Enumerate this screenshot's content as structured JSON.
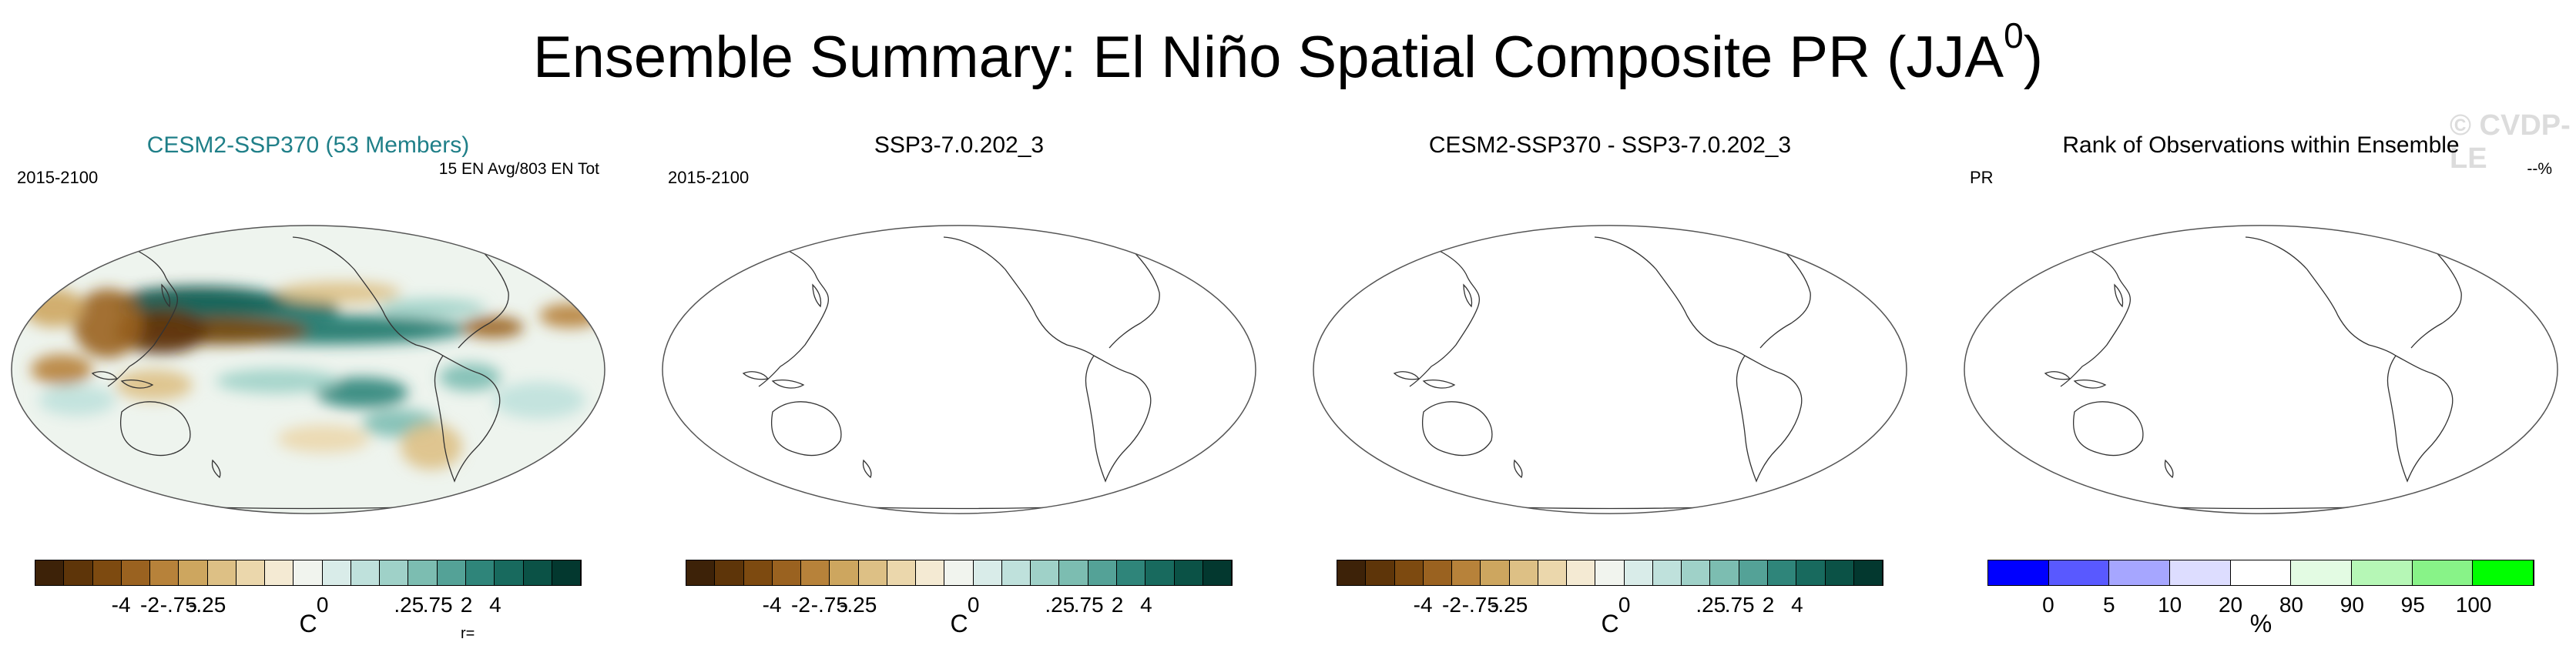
{
  "figure_title": "Ensemble Summary: El Niño Spatial Composite PR (JJA",
  "figure_title_sup": "0",
  "figure_title_end": ")",
  "watermark": "© CVDP-LE",
  "colors": {
    "diverging": [
      "#3d2208",
      "#5e3509",
      "#7d4a10",
      "#9a6220",
      "#b7823a",
      "#cda65f",
      "#ddc085",
      "#ebd7ac",
      "#f4ead3",
      "#f1f4ee",
      "#d9ece9",
      "#bfe1dc",
      "#9fd1c8",
      "#7cbdb1",
      "#54a297",
      "#2f857a",
      "#186a5e",
      "#0b5246",
      "#03382f"
    ],
    "rank": [
      "#0000ff",
      "#5959ff",
      "#a6a6ff",
      "#ddddff",
      "#ffffff",
      "#e3fbe3",
      "#b6f7b6",
      "#88f388",
      "#00ff00"
    ]
  },
  "chart_data": [
    {
      "type": "heatmap",
      "title": "CESM2-SSP370 (53 Members)",
      "title_color": "#1f7f88",
      "left_label": "2015-2100",
      "right_label": "15 EN Avg/803 EN Tot",
      "corner_label": "r=",
      "colorbar_ticks": [
        "-4",
        "-2",
        "-.75",
        "-.25",
        "0",
        ".25",
        ".75",
        "2",
        "4"
      ],
      "colorbar_unit": "C",
      "has_data": true
    },
    {
      "type": "heatmap",
      "title": "SSP3-7.0.202_3",
      "left_label": "2015-2100",
      "right_label": "",
      "colorbar_ticks": [
        "-4",
        "-2",
        "-.75",
        "-.25",
        "0",
        ".25",
        ".75",
        "2",
        "4"
      ],
      "colorbar_unit": "C",
      "has_data": false
    },
    {
      "type": "heatmap",
      "title": "CESM2-SSP370 - SSP3-7.0.202_3",
      "left_label": "",
      "right_label": "",
      "colorbar_ticks": [
        "-4",
        "-2",
        "-.75",
        "-.25",
        "0",
        ".25",
        ".75",
        "2",
        "4"
      ],
      "colorbar_unit": "C",
      "has_data": false
    },
    {
      "type": "heatmap",
      "title": "Rank of Observations within Ensemble",
      "left_label": "PR",
      "right_label": "--%",
      "colorbar_ticks": [
        "0",
        "5",
        "10",
        "20",
        "80",
        "90",
        "95",
        "100"
      ],
      "colorbar_unit": "%",
      "has_data": false
    }
  ]
}
